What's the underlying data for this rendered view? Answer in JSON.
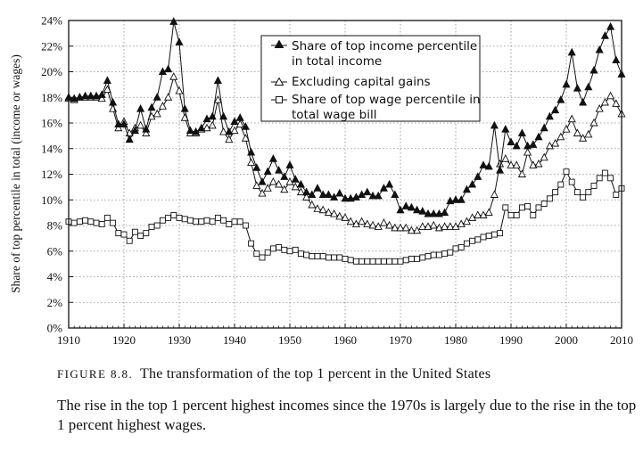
{
  "chart_data": {
    "type": "line",
    "title": "",
    "xlabel": "",
    "ylabel": "Share of top percentile in total (income or wages)",
    "xlim": [
      1910,
      2010
    ],
    "ylim": [
      0,
      24
    ],
    "xticks": [
      "1910",
      "1920",
      "1930",
      "1940",
      "1950",
      "1960",
      "1970",
      "1980",
      "1990",
      "2000",
      "2010"
    ],
    "yticks": [
      "0%",
      "2%",
      "4%",
      "6%",
      "8%",
      "10%",
      "12%",
      "14%",
      "16%",
      "18%",
      "20%",
      "22%",
      "24%"
    ],
    "grid": "dotted vertical and horizontal",
    "legend_position": "top-center",
    "x": [
      1910,
      1911,
      1912,
      1913,
      1914,
      1915,
      1916,
      1917,
      1918,
      1919,
      1920,
      1921,
      1922,
      1923,
      1924,
      1925,
      1926,
      1927,
      1928,
      1929,
      1930,
      1931,
      1932,
      1933,
      1934,
      1935,
      1936,
      1937,
      1938,
      1939,
      1940,
      1941,
      1942,
      1943,
      1944,
      1945,
      1946,
      1947,
      1948,
      1949,
      1950,
      1951,
      1952,
      1953,
      1954,
      1955,
      1956,
      1957,
      1958,
      1959,
      1960,
      1961,
      1962,
      1963,
      1964,
      1965,
      1966,
      1967,
      1968,
      1969,
      1970,
      1971,
      1972,
      1973,
      1974,
      1975,
      1976,
      1977,
      1978,
      1979,
      1980,
      1981,
      1982,
      1983,
      1984,
      1985,
      1986,
      1987,
      1988,
      1989,
      1990,
      1991,
      1992,
      1993,
      1994,
      1995,
      1996,
      1997,
      1998,
      1999,
      2000,
      2001,
      2002,
      2003,
      2004,
      2005,
      2006,
      2007,
      2008,
      2009,
      2010
    ],
    "series": [
      {
        "name": "Share of top income percentile in total income",
        "marker": "filled-triangle",
        "values": [
          18.0,
          17.9,
          18.0,
          18.1,
          18.1,
          18.1,
          18.2,
          19.3,
          17.6,
          15.9,
          15.9,
          14.7,
          15.4,
          17.1,
          15.5,
          17.2,
          18.0,
          20.0,
          20.2,
          23.9,
          22.3,
          17.1,
          15.4,
          15.3,
          15.6,
          16.3,
          16.5,
          19.3,
          16.5,
          15.3,
          16.1,
          16.4,
          15.7,
          13.7,
          12.5,
          11.4,
          12.2,
          13.2,
          12.3,
          11.8,
          12.7,
          11.6,
          11.2,
          10.6,
          10.4,
          10.9,
          10.4,
          10.4,
          10.2,
          10.5,
          10.1,
          10.1,
          10.2,
          10.4,
          10.6,
          10.3,
          10.3,
          10.9,
          11.2,
          10.4,
          9.2,
          9.5,
          9.4,
          9.2,
          9.1,
          8.9,
          8.9,
          8.9,
          9.0,
          9.9,
          10.0,
          10.0,
          10.8,
          11.2,
          11.8,
          12.7,
          12.6,
          15.8,
          12.3,
          15.5,
          14.5,
          14.2,
          15.2,
          14.2,
          14.3,
          14.9,
          15.6,
          16.5,
          17.0,
          17.8,
          19.0,
          21.5,
          18.7,
          17.6,
          18.8,
          20.1,
          21.7,
          22.8,
          23.5,
          20.9,
          19.8
        ]
      },
      {
        "name": "Excluding capital gains",
        "marker": "hollow-triangle",
        "values": [
          17.9,
          17.8,
          18.0,
          18.0,
          18.0,
          18.0,
          17.9,
          18.6,
          17.1,
          15.6,
          16.1,
          15.2,
          15.6,
          15.8,
          15.2,
          16.5,
          16.7,
          17.3,
          18.0,
          19.6,
          18.5,
          16.4,
          15.2,
          15.2,
          15.5,
          15.6,
          15.8,
          17.8,
          15.3,
          14.7,
          15.4,
          15.9,
          14.8,
          12.9,
          11.1,
          10.5,
          10.9,
          11.4,
          11.2,
          10.8,
          11.4,
          11.0,
          10.6,
          10.2,
          9.6,
          9.3,
          9.2,
          9.0,
          8.9,
          8.7,
          8.6,
          8.3,
          8.1,
          8.3,
          8.1,
          8.0,
          7.9,
          8.2,
          8.0,
          7.8,
          7.8,
          7.8,
          7.6,
          7.6,
          7.9,
          7.9,
          8.0,
          7.8,
          7.9,
          7.9,
          7.9,
          8.1,
          8.3,
          8.6,
          8.8,
          8.8,
          9.0,
          10.4,
          12.8,
          13.2,
          12.7,
          12.7,
          12.0,
          13.7,
          12.7,
          12.8,
          13.3,
          14.2,
          14.4,
          14.9,
          15.5,
          16.3,
          15.2,
          14.8,
          15.1,
          16.0,
          17.1,
          17.6,
          18.1,
          17.5,
          16.7
        ]
      },
      {
        "name": "Share of top wage percentile in total wage bill",
        "marker": "hollow-square",
        "values": [
          8.3,
          8.2,
          8.3,
          8.4,
          8.3,
          8.2,
          8.1,
          8.6,
          8.2,
          7.4,
          7.3,
          6.8,
          7.5,
          7.2,
          7.4,
          7.9,
          8.0,
          8.4,
          8.6,
          8.8,
          8.6,
          8.5,
          8.4,
          8.3,
          8.3,
          8.4,
          8.3,
          8.6,
          8.4,
          8.1,
          8.3,
          8.3,
          8.0,
          6.6,
          5.8,
          5.5,
          5.9,
          6.2,
          6.3,
          6.1,
          6.0,
          6.1,
          5.8,
          5.7,
          5.6,
          5.6,
          5.6,
          5.5,
          5.5,
          5.5,
          5.4,
          5.3,
          5.2,
          5.2,
          5.2,
          5.2,
          5.2,
          5.2,
          5.2,
          5.2,
          5.2,
          5.3,
          5.4,
          5.4,
          5.5,
          5.6,
          5.7,
          5.7,
          5.8,
          5.9,
          6.2,
          6.3,
          6.6,
          6.8,
          6.9,
          7.1,
          7.2,
          7.3,
          7.4,
          9.4,
          8.8,
          8.8,
          9.4,
          9.5,
          8.8,
          9.4,
          9.7,
          10.1,
          10.6,
          11.2,
          12.2,
          11.4,
          10.6,
          10.2,
          10.6,
          11.1,
          11.7,
          12.1,
          11.7,
          10.4,
          10.9
        ]
      }
    ]
  },
  "caption": {
    "figure_label": "FIGURE 8.8.",
    "title": "The transformation of the top 1 percent in the United States",
    "body": "The rise in the top 1 percent highest incomes since the 1970s is largely due to the rise in the top 1 percent highest wages."
  }
}
